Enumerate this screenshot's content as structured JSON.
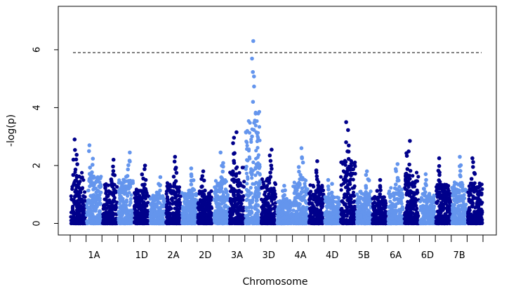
{
  "chart_data": {
    "type": "scatter",
    "xlabel": "Chromosome",
    "ylabel": "-log(p)",
    "ylim": [
      -0.4,
      7.5
    ],
    "yticks": [
      0,
      2,
      4,
      6
    ],
    "threshold": 5.9,
    "colors": {
      "dark": "#00008B",
      "light": "#6495ED",
      "threshold": "#000000"
    },
    "grid": false,
    "chromosomes": [
      {
        "label": "",
        "show_label": false,
        "color": "dark",
        "max": 2.9
      },
      {
        "label": "1A",
        "show_label": true,
        "color": "light",
        "max": 2.7
      },
      {
        "label": "",
        "show_label": false,
        "color": "dark",
        "max": 2.2
      },
      {
        "label": "",
        "show_label": false,
        "color": "light",
        "max": 2.45
      },
      {
        "label": "1D",
        "show_label": true,
        "color": "dark",
        "max": 2.0
      },
      {
        "label": "",
        "show_label": false,
        "color": "light",
        "max": 1.6
      },
      {
        "label": "2A",
        "show_label": true,
        "color": "dark",
        "max": 2.3
      },
      {
        "label": "",
        "show_label": false,
        "color": "light",
        "max": 1.9
      },
      {
        "label": "2D",
        "show_label": true,
        "color": "dark",
        "max": 1.8
      },
      {
        "label": "",
        "show_label": false,
        "color": "light",
        "max": 2.45
      },
      {
        "label": "3A",
        "show_label": true,
        "color": "dark",
        "max": 3.15
      },
      {
        "label": "",
        "show_label": false,
        "color": "light",
        "max": 6.3
      },
      {
        "label": "3D",
        "show_label": true,
        "color": "dark",
        "max": 2.55
      },
      {
        "label": "",
        "show_label": false,
        "color": "light",
        "max": 1.3
      },
      {
        "label": "4A",
        "show_label": true,
        "color": "light",
        "max": 2.6
      },
      {
        "label": "",
        "show_label": false,
        "color": "dark",
        "max": 2.15
      },
      {
        "label": "4D",
        "show_label": true,
        "color": "light",
        "max": 1.5
      },
      {
        "label": "",
        "show_label": false,
        "color": "dark",
        "max": 3.5
      },
      {
        "label": "5B",
        "show_label": true,
        "color": "light",
        "max": 1.8
      },
      {
        "label": "",
        "show_label": false,
        "color": "dark",
        "max": 1.5
      },
      {
        "label": "6A",
        "show_label": true,
        "color": "light",
        "max": 2.05
      },
      {
        "label": "",
        "show_label": false,
        "color": "dark",
        "max": 2.85
      },
      {
        "label": "6D",
        "show_label": true,
        "color": "light",
        "max": 1.7
      },
      {
        "label": "",
        "show_label": false,
        "color": "dark",
        "max": 2.25
      },
      {
        "label": "7B",
        "show_label": true,
        "color": "light",
        "max": 2.3
      },
      {
        "label": "",
        "show_label": false,
        "color": "dark",
        "max": 2.25
      }
    ]
  }
}
